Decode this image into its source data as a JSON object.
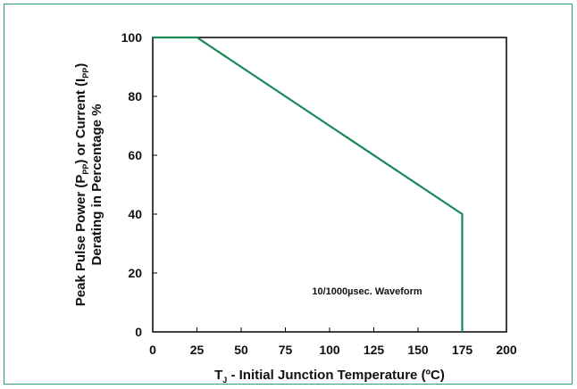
{
  "chart_data": {
    "type": "line",
    "title": "",
    "xlabel": {
      "main": "T",
      "sub": "J",
      "rest": " - Initial Junction Temperature (ºC)"
    },
    "ylabel": {
      "line1_parts": [
        {
          "t": "Peak Pulse Power (P",
          "sub": false
        },
        {
          "t": "PP",
          "sub": true
        },
        {
          "t": ") or Current (I",
          "sub": false
        },
        {
          "t": "PP",
          "sub": true
        },
        {
          "t": ")",
          "sub": false
        }
      ],
      "line2": "Derating in Percentage %"
    },
    "xlim": [
      0,
      200
    ],
    "ylim": [
      0,
      100
    ],
    "x_ticks": [
      "0",
      "25",
      "50",
      "75",
      "100",
      "125",
      "150",
      "175",
      "200"
    ],
    "y_ticks": [
      "0",
      "20",
      "40",
      "60",
      "80",
      "100"
    ],
    "grid": false,
    "series": [
      {
        "color": "#1a8a5a",
        "points": [
          [
            0,
            100
          ],
          [
            25,
            100
          ],
          [
            175,
            40
          ],
          [
            175,
            0
          ]
        ]
      }
    ],
    "annotation": "10/1000µsec. Waveform"
  }
}
